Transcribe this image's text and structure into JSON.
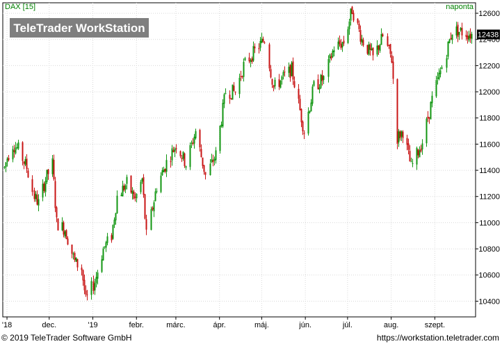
{
  "chart_title": "DAX [15]",
  "interval_label": "naponta",
  "watermark": "TeleTrader WorkStation",
  "footer": {
    "copyright": "© 2019 TeleTrader Software GmbH",
    "url": "https://workstation.teletrader.com"
  },
  "colors": {
    "up": "#129612",
    "down": "#c81414",
    "grid": "#d8d8d8",
    "axis": "#000000",
    "title": "#008000",
    "watermark_bg": "#7f7f7f",
    "badge_bg": "#000000"
  },
  "chart_data": {
    "type": "candlestick",
    "title": "DAX [15]",
    "last_value": 12438,
    "ylim": [
      10280,
      12680
    ],
    "y_ticks": [
      10400,
      10600,
      10800,
      11000,
      11200,
      11400,
      11600,
      11800,
      12000,
      12200,
      12400,
      12600
    ],
    "x_tick_labels": [
      "'18",
      "dec.",
      "'19",
      "febr.",
      "márc.",
      "ápr.",
      "máj.",
      "jún.",
      "júl.",
      "aug.",
      "szept."
    ],
    "x_tick_dates": [
      "2018-11-01",
      "2018-12-01",
      "2019-01-01",
      "2019-02-01",
      "2019-03-01",
      "2019-04-01",
      "2019-05-01",
      "2019-06-01",
      "2019-07-01",
      "2019-08-01",
      "2019-09-01"
    ],
    "x_start_date": "2018-10-30",
    "x_end_date": "2019-09-27",
    "grid": true,
    "anchors": [
      [
        "2018-10-30",
        11420
      ],
      [
        "2018-11-01",
        11500
      ],
      [
        "2018-11-05",
        11600
      ],
      [
        "2018-11-09",
        11560
      ],
      [
        "2018-11-15",
        11420
      ],
      [
        "2018-11-20",
        11200
      ],
      [
        "2018-11-23",
        11150
      ],
      [
        "2018-11-28",
        11330
      ],
      [
        "2018-12-03",
        11450
      ],
      [
        "2018-12-06",
        11000
      ],
      [
        "2018-12-12",
        10950
      ],
      [
        "2018-12-19",
        10700
      ],
      [
        "2018-12-24",
        10650
      ],
      [
        "2018-12-27",
        10400
      ],
      [
        "2019-01-02",
        10550
      ],
      [
        "2019-01-08",
        10800
      ],
      [
        "2019-01-14",
        10900
      ],
      [
        "2019-01-18",
        11200
      ],
      [
        "2019-01-25",
        11300
      ],
      [
        "2019-01-31",
        11180
      ],
      [
        "2019-02-05",
        11330
      ],
      [
        "2019-02-08",
        10900
      ],
      [
        "2019-02-15",
        11280
      ],
      [
        "2019-02-22",
        11460
      ],
      [
        "2019-03-01",
        11600
      ],
      [
        "2019-03-08",
        11450
      ],
      [
        "2019-03-15",
        11700
      ],
      [
        "2019-03-22",
        11360
      ],
      [
        "2019-03-29",
        11520
      ],
      [
        "2019-04-05",
        12000
      ],
      [
        "2019-04-12",
        12000
      ],
      [
        "2019-04-18",
        12200
      ],
      [
        "2019-04-26",
        12310
      ],
      [
        "2019-05-03",
        12400
      ],
      [
        "2019-05-09",
        12030
      ],
      [
        "2019-05-15",
        12100
      ],
      [
        "2019-05-22",
        12170
      ],
      [
        "2019-05-31",
        11700
      ],
      [
        "2019-06-07",
        12040
      ],
      [
        "2019-06-14",
        12100
      ],
      [
        "2019-06-21",
        12340
      ],
      [
        "2019-06-28",
        12380
      ],
      [
        "2019-07-04",
        12630
      ],
      [
        "2019-07-11",
        12400
      ],
      [
        "2019-07-19",
        12260
      ],
      [
        "2019-07-26",
        12420
      ],
      [
        "2019-08-01",
        12250
      ],
      [
        "2019-08-05",
        11650
      ],
      [
        "2019-08-09",
        11700
      ],
      [
        "2019-08-15",
        11420
      ],
      [
        "2019-08-23",
        11620
      ],
      [
        "2019-08-30",
        11940
      ],
      [
        "2019-09-06",
        12190
      ],
      [
        "2019-09-13",
        12470
      ],
      [
        "2019-09-19",
        12460
      ],
      [
        "2019-09-27",
        12438
      ]
    ]
  }
}
